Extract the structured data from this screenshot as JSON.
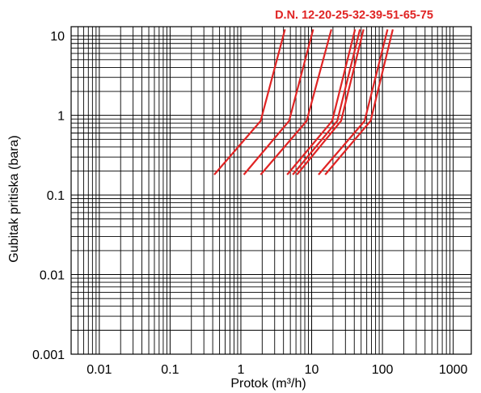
{
  "chart_data": {
    "type": "line",
    "title": "D.N. 12-20-25-32-39-51-65-75",
    "xlabel": "Protok (m³/h)",
    "ylabel": "Gubitak pritiska (bara)",
    "xscale": "log",
    "yscale": "log",
    "xlim": [
      0.004,
      1800
    ],
    "ylim": [
      0.001,
      13
    ],
    "xticks": [
      {
        "value": 0.01,
        "label": "0.01"
      },
      {
        "value": 0.1,
        "label": "0.1"
      },
      {
        "value": 1,
        "label": "1"
      },
      {
        "value": 10,
        "label": "10"
      },
      {
        "value": 100,
        "label": "100"
      },
      {
        "value": 1000,
        "label": "1000"
      }
    ],
    "yticks": [
      {
        "value": 0.001,
        "label": "0.001"
      },
      {
        "value": 0.01,
        "label": "0.01"
      },
      {
        "value": 0.1,
        "label": "0.1"
      },
      {
        "value": 1,
        "label": "1"
      },
      {
        "value": 10,
        "label": "10"
      }
    ],
    "grid": true,
    "line_color": "#e02424",
    "title_color": "#e02424",
    "series": [
      {
        "points": [
          [
            0.42,
            0.18
          ],
          [
            1.9,
            0.85
          ],
          [
            4.2,
            12
          ]
        ]
      },
      {
        "points": [
          [
            1.1,
            0.18
          ],
          [
            4.8,
            0.85
          ],
          [
            10.5,
            12
          ]
        ]
      },
      {
        "points": [
          [
            1.9,
            0.18
          ],
          [
            8.5,
            0.85
          ],
          [
            19,
            12
          ]
        ]
      },
      {
        "points": [
          [
            4.5,
            0.18
          ],
          [
            19.5,
            0.85
          ],
          [
            41,
            12
          ]
        ]
      },
      {
        "points": [
          [
            5.4,
            0.18
          ],
          [
            23,
            0.85
          ],
          [
            48,
            12
          ]
        ]
      },
      {
        "points": [
          [
            6.2,
            0.18
          ],
          [
            26,
            0.85
          ],
          [
            54,
            12
          ]
        ]
      },
      {
        "points": [
          [
            12.5,
            0.18
          ],
          [
            56,
            0.85
          ],
          [
            118,
            12
          ]
        ]
      },
      {
        "points": [
          [
            15.5,
            0.18
          ],
          [
            68,
            0.85
          ],
          [
            140,
            12
          ]
        ]
      }
    ]
  }
}
